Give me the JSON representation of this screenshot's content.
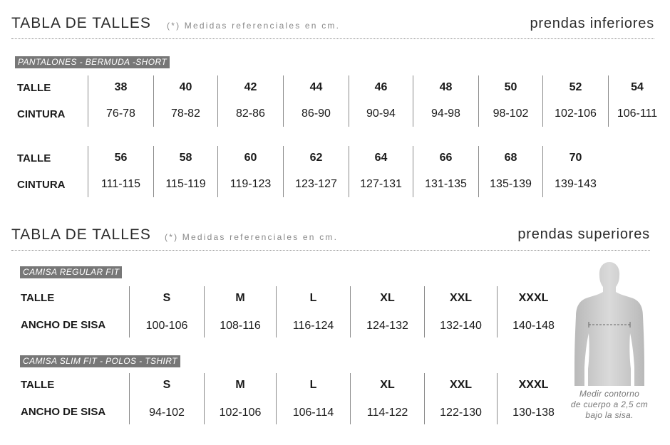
{
  "lower": {
    "title": "TABLA DE TALLES",
    "note": "(*) Medidas referenciales en cm.",
    "right_title": "prendas inferiores",
    "tag": "PANTALONES - BERMUDA -SHORT",
    "rows1": {
      "label_talle": "TALLE",
      "label_cintura": "CINTURA",
      "talles": [
        "38",
        "40",
        "42",
        "44",
        "46",
        "48",
        "50",
        "52",
        "54"
      ],
      "cinturas": [
        "76-78",
        "78-82",
        "82-86",
        "86-90",
        "90-94",
        "94-98",
        "98-102",
        "102-106",
        "106-111"
      ]
    },
    "rows2": {
      "label_talle": "TALLE",
      "label_cintura": "CINTURA",
      "talles": [
        "56",
        "58",
        "60",
        "62",
        "64",
        "66",
        "68",
        "70"
      ],
      "cinturas": [
        "111-115",
        "115-119",
        "119-123",
        "123-127",
        "127-131",
        "131-135",
        "135-139",
        "139-143"
      ]
    }
  },
  "upper": {
    "title": "TABLA DE TALLES",
    "note": "(*) Medidas referenciales en cm.",
    "right_title": "prendas superiores",
    "tables": [
      {
        "tag": "CAMISA REGULAR FIT",
        "label_talle": "TALLE",
        "label_sisa": "ANCHO DE SISA",
        "talles": [
          "S",
          "M",
          "L",
          "XL",
          "XXL",
          "XXXL"
        ],
        "values": [
          "100-106",
          "108-116",
          "116-124",
          "124-132",
          "132-140",
          "140-148"
        ]
      },
      {
        "tag": "CAMISA SLIM FIT - POLOS - TSHIRT",
        "label_talle": "TALLE",
        "label_sisa": "ANCHO DE SISA",
        "talles": [
          "S",
          "M",
          "L",
          "XL",
          "XXL",
          "XXXL"
        ],
        "values": [
          "94-102",
          "102-106",
          "106-114",
          "114-122",
          "122-130",
          "130-138"
        ]
      }
    ],
    "figure_caption": [
      "Medir contorno",
      "de cuerpo a 2,5 cm",
      "bajo la sisa."
    ],
    "figure_icon": "torso-silhouette-icon"
  }
}
